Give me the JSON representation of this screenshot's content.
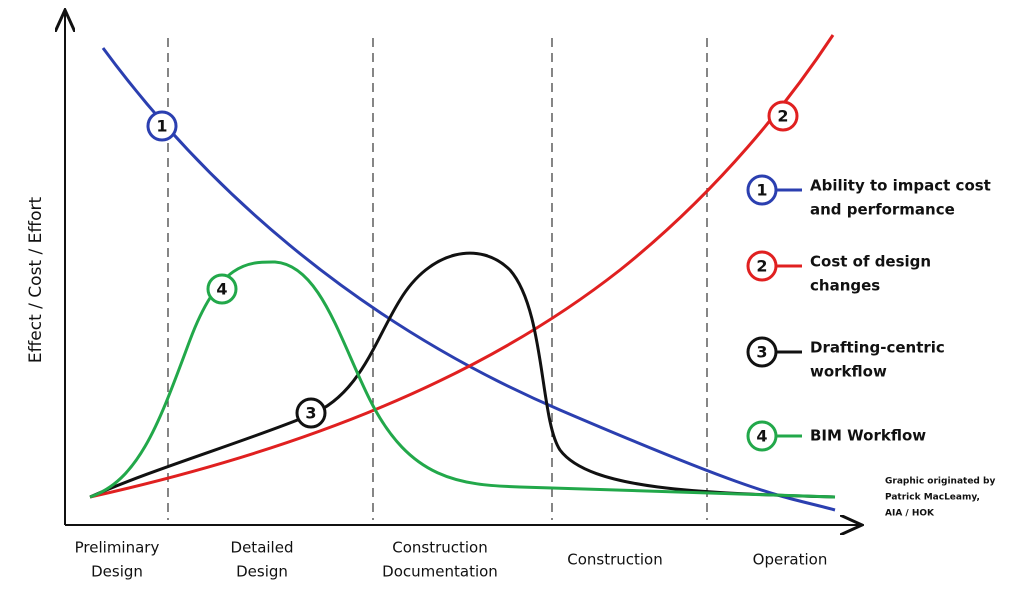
{
  "y_axis_label": "Effect / Cost / Effort",
  "phases": [
    {
      "lines": [
        "Preliminary",
        "Design"
      ]
    },
    {
      "lines": [
        "Detailed",
        "Design"
      ]
    },
    {
      "lines": [
        "Construction",
        "Documentation"
      ]
    },
    {
      "lines": [
        "Construction"
      ]
    },
    {
      "lines": [
        "Operation"
      ]
    }
  ],
  "legend": {
    "items": [
      {
        "number": "1",
        "lines": [
          "Ability to impact cost",
          "and performance"
        ]
      },
      {
        "number": "2",
        "lines": [
          "Cost of design",
          "changes"
        ]
      },
      {
        "number": "3",
        "lines": [
          "Drafting-centric",
          "workflow"
        ]
      },
      {
        "number": "4",
        "lines": [
          "BIM Workflow"
        ]
      }
    ]
  },
  "credit": {
    "lines": [
      "Graphic originated by",
      "Patrick MacLeamy,",
      "AIA / HOK"
    ]
  }
}
